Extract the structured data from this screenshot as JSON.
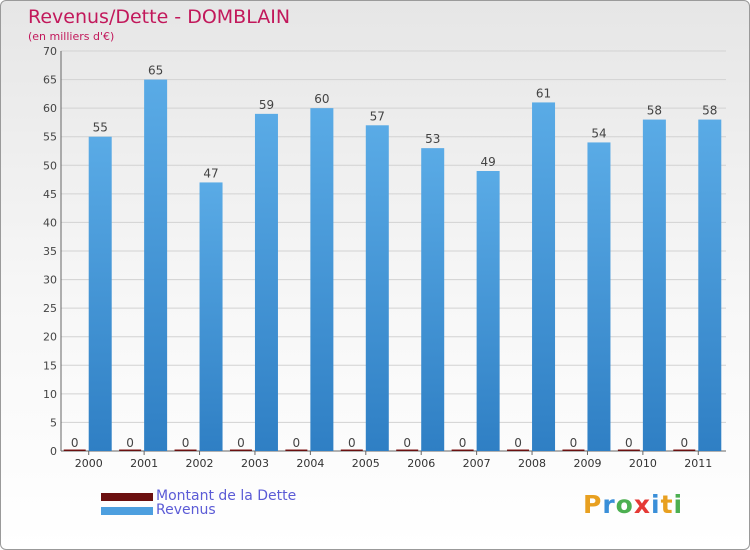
{
  "chart_data": {
    "type": "bar",
    "title": "Revenus/Dette - DOMBLAIN",
    "subtitle": "(en milliers d'€)",
    "categories": [
      "2000",
      "2001",
      "2002",
      "2003",
      "2004",
      "2005",
      "2006",
      "2007",
      "2008",
      "2009",
      "2010",
      "2011"
    ],
    "series": [
      {
        "name": "Montant de la Dette",
        "color": "#6b0f0f",
        "values": [
          0,
          0,
          0,
          0,
          0,
          0,
          0,
          0,
          0,
          0,
          0,
          0
        ]
      },
      {
        "name": "Revenus",
        "color": "#4d9fdf",
        "values": [
          55,
          65,
          47,
          59,
          60,
          57,
          53,
          49,
          61,
          54,
          58,
          58
        ]
      }
    ],
    "ylim": [
      0,
      70
    ],
    "yticks": [
      0,
      5,
      10,
      15,
      20,
      25,
      30,
      35,
      40,
      45,
      50,
      55,
      60,
      65,
      70
    ],
    "grid": true,
    "legend_position": "bottom-left"
  },
  "logo": {
    "letters": [
      "P",
      "r",
      "o",
      "x",
      "i",
      "t",
      "i"
    ],
    "colors": [
      "#e8a020",
      "#3a8fd8",
      "#4caf50",
      "#e53935",
      "#3a8fd8",
      "#e8a020",
      "#4caf50"
    ]
  }
}
